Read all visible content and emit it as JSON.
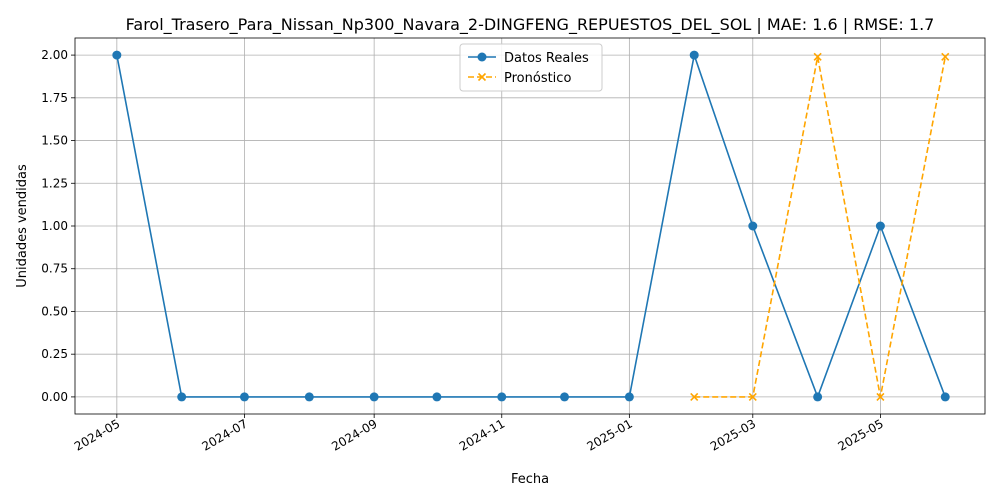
{
  "chart_data": {
    "type": "line",
    "title": "Farol_Trasero_Para_Nissan_Np300_Navara_2-DINGFENG_REPUESTOS_DEL_SOL | MAE: 1.6 | RMSE: 1.7",
    "xlabel": "Fecha",
    "ylabel": "Unidades vendidas",
    "x_axis_type": "date",
    "xlim": [
      "2024-04-11",
      "2025-06-20"
    ],
    "ylim": [
      -0.1,
      2.1
    ],
    "x_ticks": [
      {
        "value": "2024-05-01",
        "label": "2024-05"
      },
      {
        "value": "2024-07-01",
        "label": "2024-07"
      },
      {
        "value": "2024-09-01",
        "label": "2024-09"
      },
      {
        "value": "2024-11-01",
        "label": "2024-11"
      },
      {
        "value": "2025-01-01",
        "label": "2025-01"
      },
      {
        "value": "2025-03-01",
        "label": "2025-03"
      },
      {
        "value": "2025-05-01",
        "label": "2025-05"
      }
    ],
    "y_ticks": [
      {
        "value": 0.0,
        "label": "0.00"
      },
      {
        "value": 0.25,
        "label": "0.25"
      },
      {
        "value": 0.5,
        "label": "0.50"
      },
      {
        "value": 0.75,
        "label": "0.75"
      },
      {
        "value": 1.0,
        "label": "1.00"
      },
      {
        "value": 1.25,
        "label": "1.25"
      },
      {
        "value": 1.5,
        "label": "1.50"
      },
      {
        "value": 1.75,
        "label": "1.75"
      },
      {
        "value": 2.0,
        "label": "2.00"
      }
    ],
    "grid": true,
    "legend_position": "top-center",
    "series": [
      {
        "name": "Datos Reales",
        "color": "#1f77b4",
        "line_style": "solid",
        "marker": "circle",
        "x": [
          "2024-05-01",
          "2024-06-01",
          "2024-07-01",
          "2024-08-01",
          "2024-09-01",
          "2024-10-01",
          "2024-11-01",
          "2024-12-01",
          "2025-01-01",
          "2025-02-01",
          "2025-03-01",
          "2025-04-01",
          "2025-05-01",
          "2025-06-01"
        ],
        "y": [
          2,
          0,
          0,
          0,
          0,
          0,
          0,
          0,
          0,
          2,
          1,
          0,
          1,
          0
        ]
      },
      {
        "name": "Pronóstico",
        "color": "#ffa500",
        "line_style": "dashed",
        "marker": "x",
        "x": [
          "2025-02-01",
          "2025-03-01",
          "2025-04-01",
          "2025-05-01",
          "2025-06-01"
        ],
        "y": [
          0.0,
          0.0,
          1.99,
          0.0,
          1.99
        ]
      }
    ]
  }
}
